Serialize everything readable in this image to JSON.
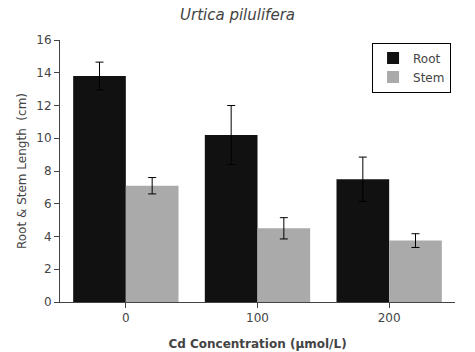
{
  "chart_data": {
    "type": "bar",
    "title": "Urtica pilulifera",
    "xlabel": "Cd Concentration (μmol/L)",
    "ylabel": "Root & Stem Length  (cm)",
    "categories": [
      "0",
      "100",
      "200"
    ],
    "series": [
      {
        "name": "Root",
        "color": "#111111",
        "values": [
          13.8,
          10.2,
          7.5
        ],
        "errors": [
          0.85,
          1.8,
          1.35
        ]
      },
      {
        "name": "Stem",
        "color": "#aaaaaa",
        "values": [
          7.1,
          4.5,
          3.75
        ],
        "errors": [
          0.5,
          0.65,
          0.42
        ]
      }
    ],
    "ylim": [
      0,
      16
    ],
    "yticks": [
      0,
      2,
      4,
      6,
      8,
      10,
      12,
      14,
      16
    ],
    "legend": "upper right",
    "grid": false
  }
}
